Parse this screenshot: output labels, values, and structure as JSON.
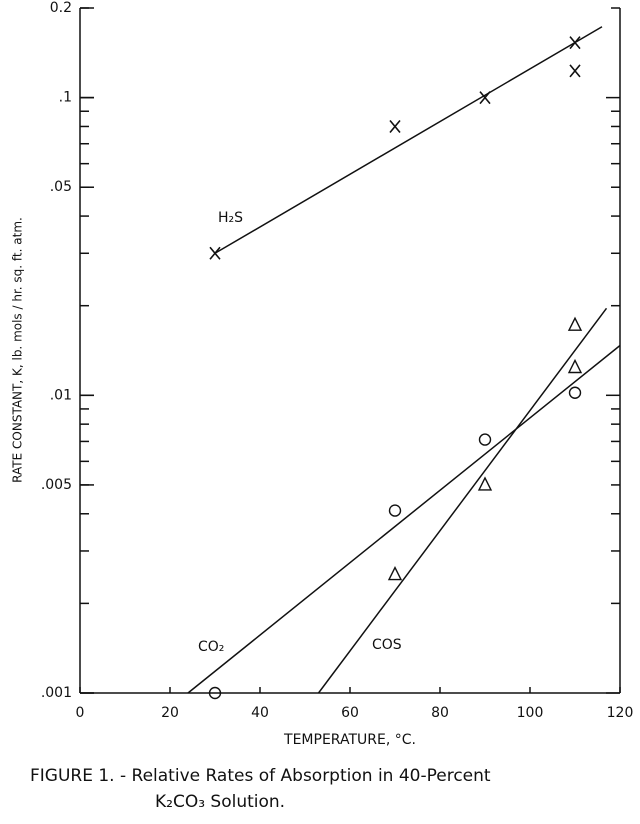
{
  "chart_data": {
    "type": "scatter",
    "x_label": "TEMPERATURE, °C.",
    "y_label": "RATE CONSTANT, K, lb. mols / hr. sq. ft. atm.",
    "caption": [
      "FIGURE 1. - Relative Rates of Absorption in 40-Percent",
      "K₂CO₃ Solution."
    ],
    "xlim": [
      0,
      120
    ],
    "xticks": [
      0,
      20,
      40,
      60,
      80,
      100,
      120
    ],
    "ylim": [
      0.001,
      0.2
    ],
    "y_scale": "log",
    "yticks": [
      {
        "value": 0.001,
        "label": ".001"
      },
      {
        "value": 0.005,
        "label": ".005"
      },
      {
        "value": 0.01,
        "label": ".01"
      },
      {
        "value": 0.05,
        "label": ".05"
      },
      {
        "value": 0.1,
        "label": ".1"
      },
      0.2
    ],
    "color": "#111111",
    "series": [
      {
        "name": "H₂S",
        "marker": "x",
        "x": [
          30,
          70,
          90,
          110,
          110
        ],
        "values": [
          0.03,
          0.08,
          0.1,
          0.153,
          0.123
        ],
        "fit": {
          "x": [
            30,
            116
          ],
          "values": [
            0.03,
            0.173
          ]
        }
      },
      {
        "name": "CO₂",
        "marker": "circle",
        "x": [
          30,
          70,
          90,
          110
        ],
        "values": [
          0.001,
          0.0041,
          0.0071,
          0.0102
        ],
        "fit": {
          "x": [
            24,
            120
          ],
          "values": [
            0.001,
            0.0147
          ]
        }
      },
      {
        "name": "COS",
        "marker": "triangle",
        "x": [
          70,
          90,
          110,
          110
        ],
        "values": [
          0.0025,
          0.005,
          0.0124,
          0.0172
        ],
        "fit": {
          "x": [
            53,
            117
          ],
          "values": [
            0.001,
            0.0196
          ]
        }
      }
    ]
  }
}
